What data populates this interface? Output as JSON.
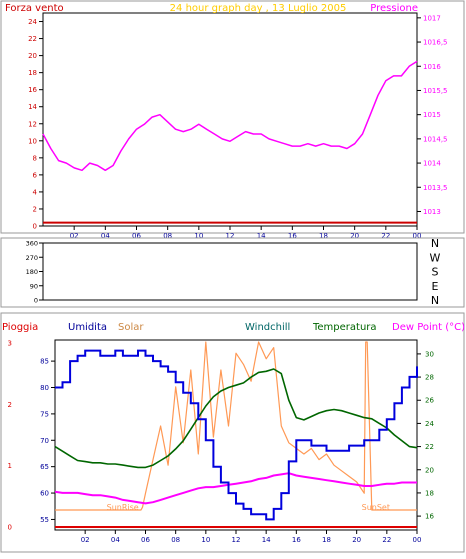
{
  "chart_data": [
    {
      "type": "line",
      "title": "24 hour graph day , 13 Luglio 2005",
      "left_label": "Forza vento",
      "right_label": "Pressione",
      "left_ticks": [
        0,
        2,
        4,
        6,
        8,
        10,
        12,
        14,
        16,
        18,
        20,
        22,
        24
      ],
      "right_ticks": [
        "1013",
        "1013,5",
        "1014",
        "1014,5",
        "1015",
        "1015,5",
        "1016",
        "1016,5",
        "1017"
      ],
      "x_ticks": [
        "02",
        "04",
        "06",
        "08",
        "10",
        "12",
        "14",
        "16",
        "18",
        "20",
        "22",
        "00"
      ],
      "xlim": [
        0,
        24
      ],
      "ylim_left": [
        0,
        25
      ],
      "ylim_right": [
        1012.7,
        1017.1
      ],
      "series": [
        {
          "axis": "right",
          "color": "#ff00ff",
          "x": [
            0,
            0.5,
            1,
            1.5,
            2,
            2.5,
            3,
            3.5,
            4,
            4.5,
            5,
            5.5,
            6,
            6.5,
            7,
            7.5,
            8,
            8.5,
            9,
            9.5,
            10,
            10.5,
            11,
            11.5,
            12,
            12.5,
            13,
            13.5,
            14,
            14.5,
            15,
            15.5,
            16,
            16.5,
            17,
            17.5,
            18,
            18.5,
            19,
            19.5,
            20,
            20.5,
            21,
            21.5,
            22,
            22.5,
            23,
            23.5,
            24
          ],
          "values": [
            1014.6,
            1014.3,
            1014.05,
            1014.0,
            1013.9,
            1013.85,
            1014.0,
            1013.95,
            1013.85,
            1013.95,
            1014.25,
            1014.5,
            1014.7,
            1014.8,
            1014.95,
            1015.0,
            1014.85,
            1014.7,
            1014.65,
            1014.7,
            1014.8,
            1014.7,
            1014.6,
            1014.5,
            1014.45,
            1014.55,
            1014.65,
            1014.6,
            1014.6,
            1014.5,
            1014.45,
            1014.4,
            1014.35,
            1014.35,
            1014.4,
            1014.35,
            1014.4,
            1014.35,
            1014.35,
            1014.3,
            1014.4,
            1014.6,
            1015.0,
            1015.4,
            1015.7,
            1015.8,
            1015.8,
            1016.0,
            1016.1
          ]
        },
        {
          "axis": "left",
          "color": "#cc0000",
          "x": [
            0,
            24
          ],
          "values": [
            0.4,
            0.4
          ]
        }
      ]
    },
    {
      "type": "scatter",
      "left_ticks": [
        "0",
        "90",
        "180",
        "270",
        "360"
      ],
      "right_ticks": [
        "N",
        "E",
        "S",
        "W",
        "N"
      ],
      "xlim": [
        0,
        24
      ],
      "ylim": [
        0,
        360
      ],
      "series": []
    },
    {
      "type": "line",
      "labels": {
        "rain": "Pioggia",
        "humidity": "Umidita",
        "solar": "Solar",
        "windchill": "Windchill",
        "temperature": "Temperatura",
        "dewpoint": "Dew Point (°C)",
        "sunrise": "SunRise",
        "sunset": "SunSet"
      },
      "left_ticks_rain": [
        "0",
        "1",
        "2",
        "3"
      ],
      "left_ticks_humidity": [
        55,
        60,
        65,
        70,
        75,
        80,
        85
      ],
      "right_ticks_temp": [
        16,
        18,
        20,
        22,
        24,
        26,
        28,
        30
      ],
      "x_ticks": [
        "02",
        "04",
        "06",
        "08",
        "10",
        "12",
        "14",
        "16",
        "18",
        "20",
        "22",
        "00"
      ],
      "xlim": [
        0,
        24
      ],
      "ylim_humidity": [
        53,
        89
      ],
      "ylim_temp": [
        14.8,
        31.2
      ],
      "sunrise_hour": 5.75,
      "sunset_hour": 20.75,
      "series": [
        {
          "name": "Umidita",
          "axis": "humidity",
          "color": "#0000dd",
          "x": [
            0,
            0.5,
            1,
            1.5,
            2,
            2.5,
            3,
            3.5,
            4,
            4.5,
            5,
            5.5,
            6,
            6.5,
            7,
            7.5,
            8,
            8.5,
            9,
            9.5,
            10,
            10.5,
            11,
            11.5,
            12,
            12.5,
            13,
            13.5,
            14,
            14.5,
            15,
            15.5,
            16,
            16.5,
            17,
            17.5,
            18,
            18.5,
            19,
            19.5,
            20,
            20.5,
            21,
            21.5,
            22,
            22.5,
            23,
            23.5,
            24
          ],
          "values": [
            80,
            81,
            85,
            86,
            87,
            87,
            86,
            86,
            87,
            86,
            86,
            87,
            86,
            85,
            84,
            83,
            81,
            79,
            77,
            74,
            70,
            65,
            62,
            60,
            58,
            57,
            56,
            56,
            55,
            57,
            60,
            66,
            70,
            70,
            69,
            69,
            68,
            68,
            68,
            69,
            69,
            70,
            70,
            72,
            74,
            77,
            80,
            82,
            84
          ]
        },
        {
          "name": "Temperatura",
          "axis": "temp",
          "color": "#006600",
          "x": [
            0,
            0.5,
            1,
            1.5,
            2,
            2.5,
            3,
            3.5,
            4,
            4.5,
            5,
            5.5,
            6,
            6.5,
            7,
            7.5,
            8,
            8.5,
            9,
            9.5,
            10,
            10.5,
            11,
            11.5,
            12,
            12.5,
            13,
            13.5,
            14,
            14.5,
            15,
            15.5,
            16,
            16.5,
            17,
            17.5,
            18,
            18.5,
            19,
            19.5,
            20,
            20.5,
            21,
            21.5,
            22,
            22.5,
            23,
            23.5,
            24
          ],
          "values": [
            22.0,
            21.6,
            21.2,
            20.8,
            20.7,
            20.6,
            20.6,
            20.5,
            20.5,
            20.4,
            20.3,
            20.2,
            20.2,
            20.4,
            20.8,
            21.2,
            21.8,
            22.5,
            23.5,
            24.5,
            25.5,
            26.3,
            26.8,
            27.1,
            27.3,
            27.5,
            28.0,
            28.4,
            28.5,
            28.7,
            28.3,
            26.0,
            24.5,
            24.3,
            24.6,
            24.9,
            25.1,
            25.2,
            25.1,
            24.9,
            24.7,
            24.5,
            24.4,
            24.0,
            23.6,
            23.0,
            22.5,
            22.0,
            21.9
          ]
        },
        {
          "name": "Dew Point (°C)",
          "axis": "temp",
          "color": "#ff00ff",
          "x": [
            0,
            0.5,
            1,
            1.5,
            2,
            2.5,
            3,
            3.5,
            4,
            4.5,
            5,
            5.5,
            6,
            6.5,
            7,
            7.5,
            8,
            8.5,
            9,
            9.5,
            10,
            10.5,
            11,
            11.5,
            12,
            12.5,
            13,
            13.5,
            14,
            14.5,
            15,
            15.5,
            16,
            16.5,
            17,
            17.5,
            18,
            18.5,
            19,
            19.5,
            20,
            20.5,
            21,
            21.5,
            22,
            22.5,
            23,
            23.5,
            24
          ],
          "values": [
            18.1,
            18.0,
            18.0,
            18.0,
            17.9,
            17.8,
            17.8,
            17.7,
            17.6,
            17.4,
            17.3,
            17.2,
            17.1,
            17.2,
            17.4,
            17.6,
            17.8,
            18.0,
            18.2,
            18.4,
            18.5,
            18.5,
            18.6,
            18.7,
            18.8,
            18.9,
            19.0,
            19.2,
            19.3,
            19.5,
            19.6,
            19.7,
            19.5,
            19.4,
            19.3,
            19.2,
            19.1,
            19.0,
            18.9,
            18.8,
            18.7,
            18.6,
            18.6,
            18.7,
            18.8,
            18.8,
            18.9,
            18.9,
            18.9
          ]
        },
        {
          "name": "Solar",
          "axis": "solar",
          "color": "#ff9955",
          "x": [
            0,
            5.7,
            5.8,
            6,
            6.5,
            7,
            7.5,
            8,
            8.5,
            9,
            9.5,
            10,
            10.5,
            11,
            11.5,
            12,
            12.5,
            13,
            13.5,
            14,
            14.5,
            15,
            15.5,
            16,
            16.5,
            17,
            17.5,
            18,
            18.5,
            19,
            19.5,
            20,
            20.5,
            20.6,
            20.7,
            21,
            24
          ],
          "values": [
            0,
            0,
            0.05,
            0.3,
            0.9,
            1.5,
            0.8,
            2.2,
            1.2,
            2.5,
            1.0,
            3.0,
            1.3,
            2.5,
            1.5,
            2.8,
            2.6,
            2.3,
            3.0,
            2.7,
            2.9,
            1.5,
            1.2,
            1.1,
            1.0,
            1.1,
            0.9,
            1.0,
            0.8,
            0.7,
            0.6,
            0.5,
            0.3,
            3.0,
            3.0,
            0,
            0
          ]
        },
        {
          "name": "Pioggia",
          "axis": "rain",
          "color": "#dd0000",
          "x": [
            0,
            24
          ],
          "values": [
            0,
            0
          ]
        }
      ]
    }
  ]
}
